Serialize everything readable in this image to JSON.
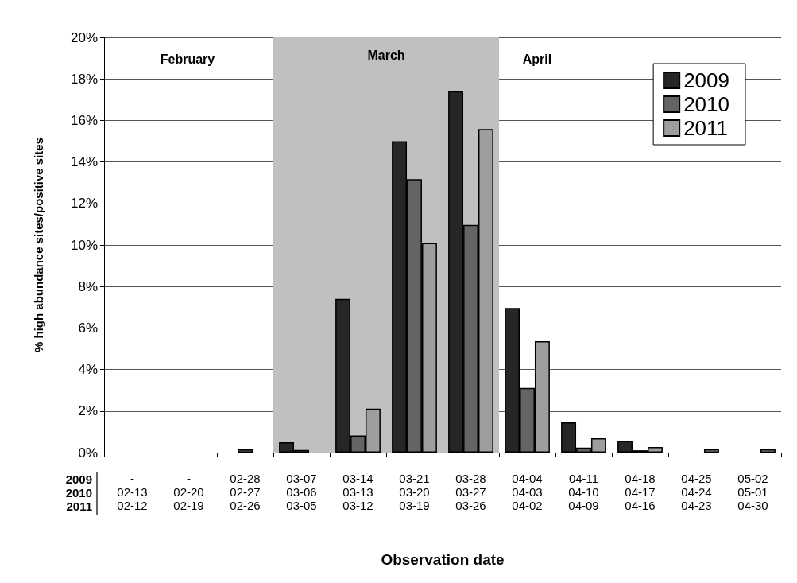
{
  "chart_data": {
    "type": "bar",
    "xlabel": "Observation date",
    "ylabel": "% high abundance sites/positive sites",
    "categories": [
      "-\n02-13\n02-12",
      "-\n02-20\n02-19",
      "02-28\n02-27\n02-26",
      "03-07\n03-06\n03-05",
      "03-14\n03-13\n03-12",
      "03-21\n03-20\n03-19",
      "03-28\n03-27\n03-26",
      "04-04\n04-03\n04-02",
      "04-11\n04-10\n04-09",
      "04-18\n04-17\n04-16",
      "04-25\n04-24\n04-23",
      "05-02\n05-01\n04-30"
    ],
    "series": [
      {
        "name": "2009",
        "color": "#262626",
        "values": [
          0,
          0,
          0,
          0.5,
          7.4,
          15.0,
          17.4,
          6.96,
          1.46,
          0.56,
          0,
          0
        ]
      },
      {
        "name": "2010",
        "color": "#646464",
        "values": [
          0,
          0,
          0.15,
          0.12,
          0.82,
          13.17,
          10.97,
          3.11,
          0.24,
          0.11,
          0,
          0
        ]
      },
      {
        "name": "2011",
        "color": "#9e9e9e",
        "values": [
          0,
          0,
          0,
          0,
          2.12,
          10.1,
          15.58,
          5.36,
          0.69,
          0.27,
          0.15,
          0.15
        ]
      }
    ],
    "ylim": [
      0,
      20
    ],
    "yticks": [
      {
        "value": 0,
        "label": "0%"
      },
      {
        "value": 2,
        "label": "2%"
      },
      {
        "value": 4,
        "label": "4%"
      },
      {
        "value": 6,
        "label": "6%"
      },
      {
        "value": 8,
        "label": "8%"
      },
      {
        "value": 10,
        "label": "10%"
      },
      {
        "value": 12,
        "label": "12%"
      },
      {
        "value": 14,
        "label": "14%"
      },
      {
        "value": 16,
        "label": "16%"
      },
      {
        "value": 18,
        "label": "18%"
      },
      {
        "value": 20,
        "label": "20%"
      }
    ],
    "grid": "y",
    "legend": "top right",
    "bands": [
      {
        "axis": "x",
        "from": "03-07\n03-06\n03-05",
        "to": "03-28\n03-27\n03-26",
        "label": "March",
        "color": "#c0c0c0"
      }
    ],
    "annotations": [
      "2009\n2010\n2011",
      "February",
      "April"
    ]
  }
}
